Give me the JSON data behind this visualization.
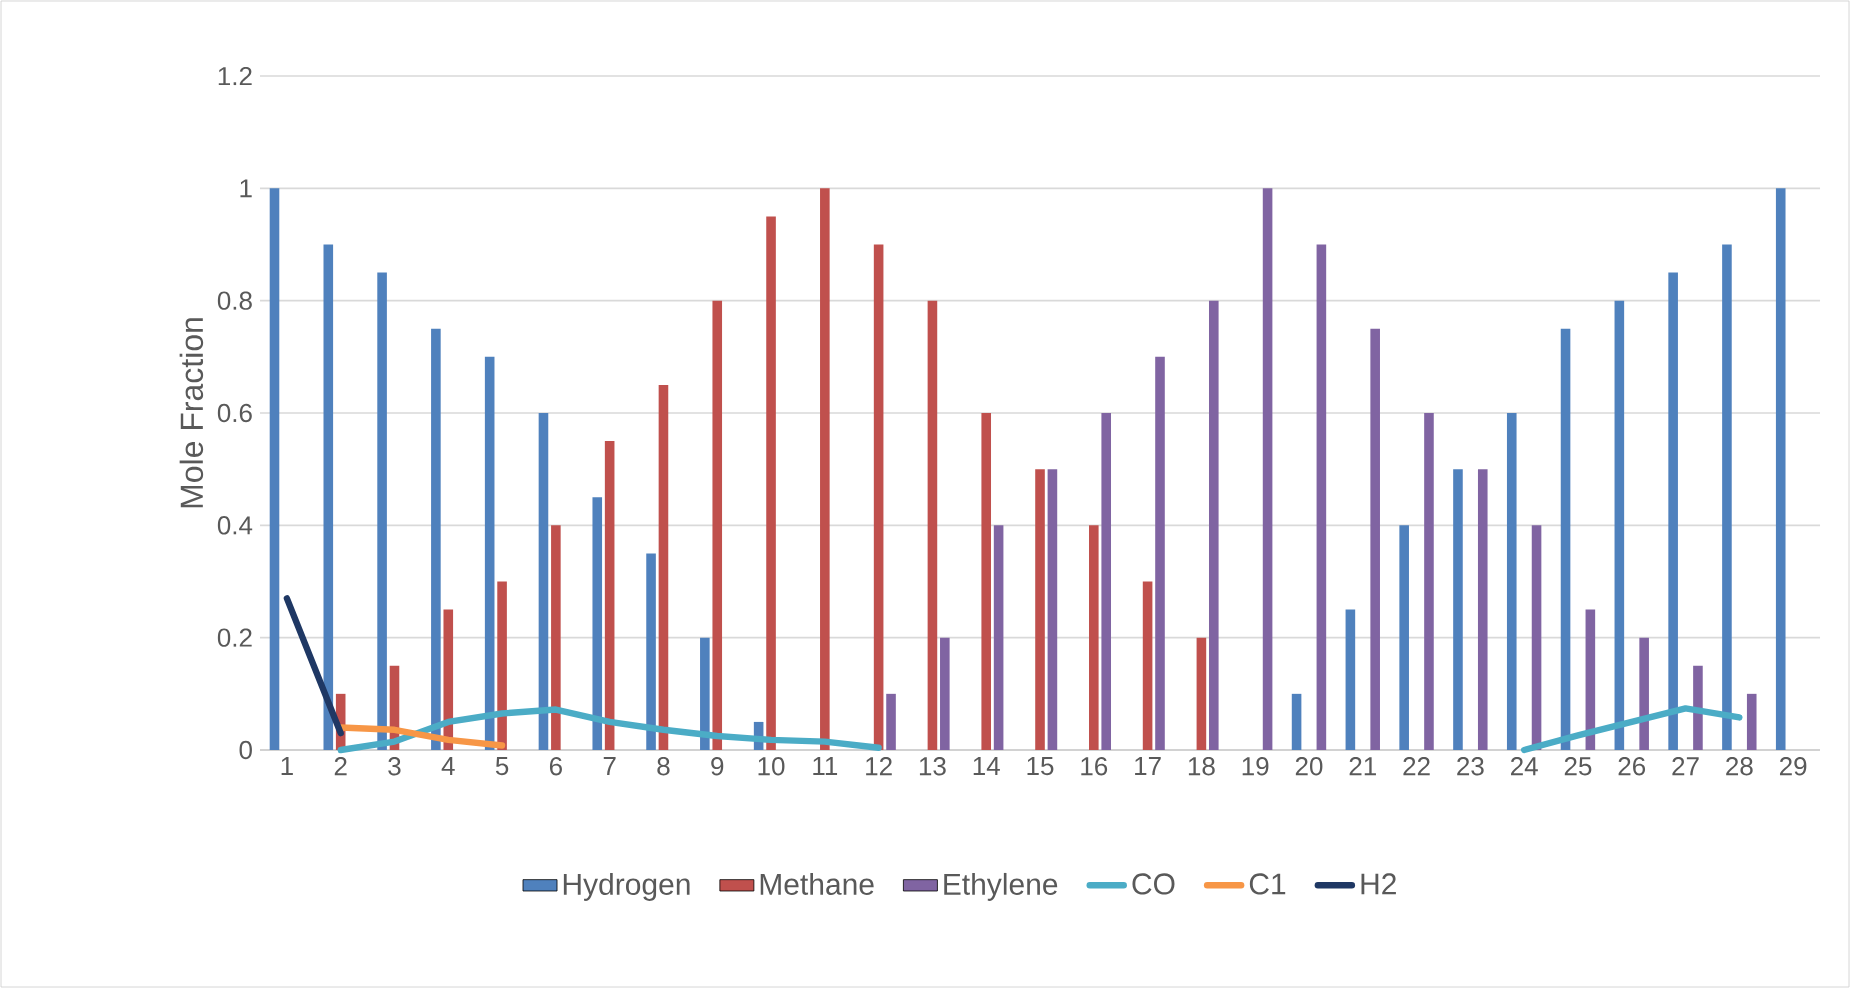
{
  "chart_data": {
    "type": "bar",
    "ylabel": "Mole Fraction",
    "categories": [
      "1",
      "2",
      "3",
      "4",
      "5",
      "6",
      "7",
      "8",
      "9",
      "10",
      "11",
      "12",
      "13",
      "14",
      "15",
      "16",
      "17",
      "18",
      "19",
      "20",
      "21",
      "22",
      "23",
      "24",
      "25",
      "26",
      "27",
      "28",
      "29"
    ],
    "series": [
      {
        "name": "Hydrogen",
        "color": "#4f81bd",
        "values": [
          1,
          0.9,
          0.85,
          0.75,
          0.7,
          0.6,
          0.45,
          0.35,
          0.2,
          0.05,
          null,
          null,
          null,
          null,
          null,
          null,
          null,
          null,
          null,
          0.1,
          0.25,
          0.4,
          0.5,
          0.6,
          0.75,
          0.8,
          0.85,
          0.9,
          1
        ]
      },
      {
        "name": "Methane",
        "color": "#c0504d",
        "values": [
          null,
          0.1,
          0.15,
          0.25,
          0.3,
          0.4,
          0.55,
          0.65,
          0.8,
          0.95,
          1,
          0.9,
          0.8,
          0.6,
          0.5,
          0.4,
          0.3,
          0.2,
          null,
          null,
          null,
          null,
          null,
          null,
          null,
          null,
          null,
          null,
          null
        ]
      },
      {
        "name": "Ethylene",
        "color": "#8064a2",
        "values": [
          null,
          null,
          null,
          null,
          null,
          null,
          null,
          null,
          null,
          null,
          null,
          0.1,
          0.2,
          0.4,
          0.5,
          0.6,
          0.7,
          0.8,
          1,
          0.9,
          0.75,
          0.6,
          0.5,
          0.4,
          0.25,
          0.2,
          0.15,
          0.1,
          null
        ]
      },
      {
        "name": "CO",
        "type": "line",
        "color": "#4bacc6",
        "values": [
          null,
          0,
          0.015,
          0.05,
          0.065,
          0.072,
          0.05,
          0.036,
          0.025,
          0.018,
          0.015,
          0.004,
          null,
          null,
          null,
          null,
          null,
          null,
          null,
          null,
          null,
          null,
          null,
          0,
          0.026,
          0.05,
          0.074,
          0.058,
          null
        ]
      },
      {
        "name": "C1",
        "type": "line",
        "color": "#f79646",
        "values": [
          null,
          0.04,
          0.036,
          0.018,
          0.008,
          null,
          null,
          null,
          null,
          null,
          null,
          null,
          null,
          null,
          null,
          null,
          null,
          null,
          null,
          null,
          null,
          null,
          null,
          null,
          null,
          null,
          null,
          null,
          null
        ]
      },
      {
        "name": "H2",
        "type": "line",
        "color": "#1f3864",
        "values": [
          0.27,
          0.03,
          null,
          null,
          null,
          null,
          null,
          null,
          null,
          null,
          null,
          null,
          null,
          null,
          null,
          null,
          null,
          null,
          null,
          null,
          null,
          null,
          null,
          null,
          null,
          null,
          null,
          null,
          null
        ]
      }
    ],
    "ylim": [
      0,
      1.2
    ],
    "yticks": [
      0,
      0.2,
      0.4,
      0.6,
      0.8,
      1,
      1.2
    ],
    "grid": "y",
    "legend": "bottom"
  }
}
